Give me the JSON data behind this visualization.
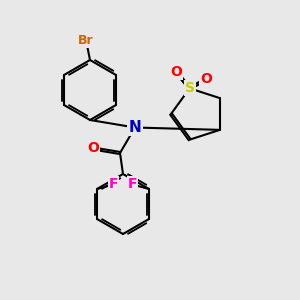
{
  "bg_color": "#e8e8e8",
  "atom_colors": {
    "Br": "#cc6600",
    "N": "#0000cc",
    "O": "#ff0000",
    "S": "#cccc00",
    "F": "#ff00cc",
    "C": "#000000"
  },
  "bond_color": "#000000",
  "bond_width": 1.5,
  "dbo": 0.035,
  "fig_size": [
    3.0,
    3.0
  ],
  "dpi": 100,
  "xlim": [
    0,
    10
  ],
  "ylim": [
    0,
    10
  ]
}
